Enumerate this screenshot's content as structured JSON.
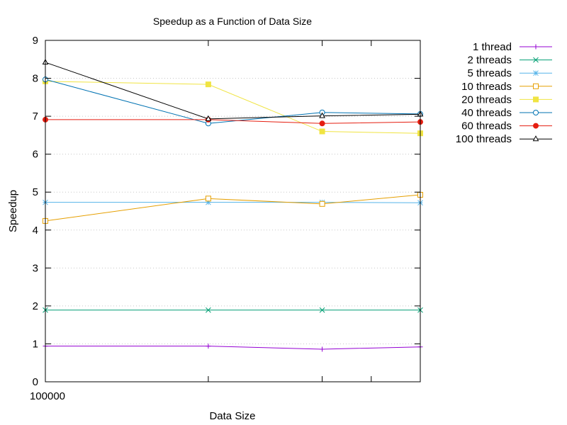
{
  "chart_data": {
    "type": "line",
    "title": "Speedup as a Function of Data Size",
    "xlabel": "Data Size",
    "ylabel": "Speedup",
    "x_scale": "log",
    "x": [
      100000,
      1000000,
      5000000,
      20000000
    ],
    "xlim": [
      100000,
      20000000
    ],
    "ylim": [
      0,
      9
    ],
    "y_ticks": [
      0,
      1,
      2,
      3,
      4,
      5,
      6,
      7,
      8,
      9
    ],
    "x_tick_labels": [
      {
        "value": 100000,
        "label": "100000"
      },
      {
        "value": 1000000,
        "label": ""
      },
      {
        "value": 5000000,
        "label": ""
      },
      {
        "value": 10000000,
        "label": ""
      },
      {
        "value": 20000000,
        "label": ""
      }
    ],
    "grid": "horizontal dotted",
    "legend_position": "outside top-right",
    "series": [
      {
        "name": "1 thread",
        "color": "#9400d3",
        "marker": "plus",
        "values": [
          0.94,
          0.94,
          0.86,
          0.92
        ]
      },
      {
        "name": "2 threads",
        "color": "#009e73",
        "marker": "cross",
        "values": [
          1.89,
          1.89,
          1.89,
          1.89
        ]
      },
      {
        "name": "5 threads",
        "color": "#56b4e9",
        "marker": "star",
        "values": [
          4.73,
          4.73,
          4.73,
          4.72
        ]
      },
      {
        "name": "10 threads",
        "color": "#e69f00",
        "marker": "open-square",
        "values": [
          4.24,
          4.83,
          4.69,
          4.93
        ]
      },
      {
        "name": "20 threads",
        "color": "#f0e442",
        "marker": "filled-square",
        "values": [
          7.92,
          7.84,
          6.6,
          6.55
        ]
      },
      {
        "name": "40 threads",
        "color": "#0072b2",
        "marker": "open-circle",
        "values": [
          7.97,
          6.81,
          7.1,
          7.06
        ]
      },
      {
        "name": "60 threads",
        "color": "#e51e10",
        "marker": "filled-circle",
        "values": [
          6.91,
          6.91,
          6.81,
          6.85
        ]
      },
      {
        "name": "100 threads",
        "color": "#000000",
        "marker": "open-triangle",
        "values": [
          8.42,
          6.93,
          7.01,
          7.05
        ]
      }
    ]
  }
}
